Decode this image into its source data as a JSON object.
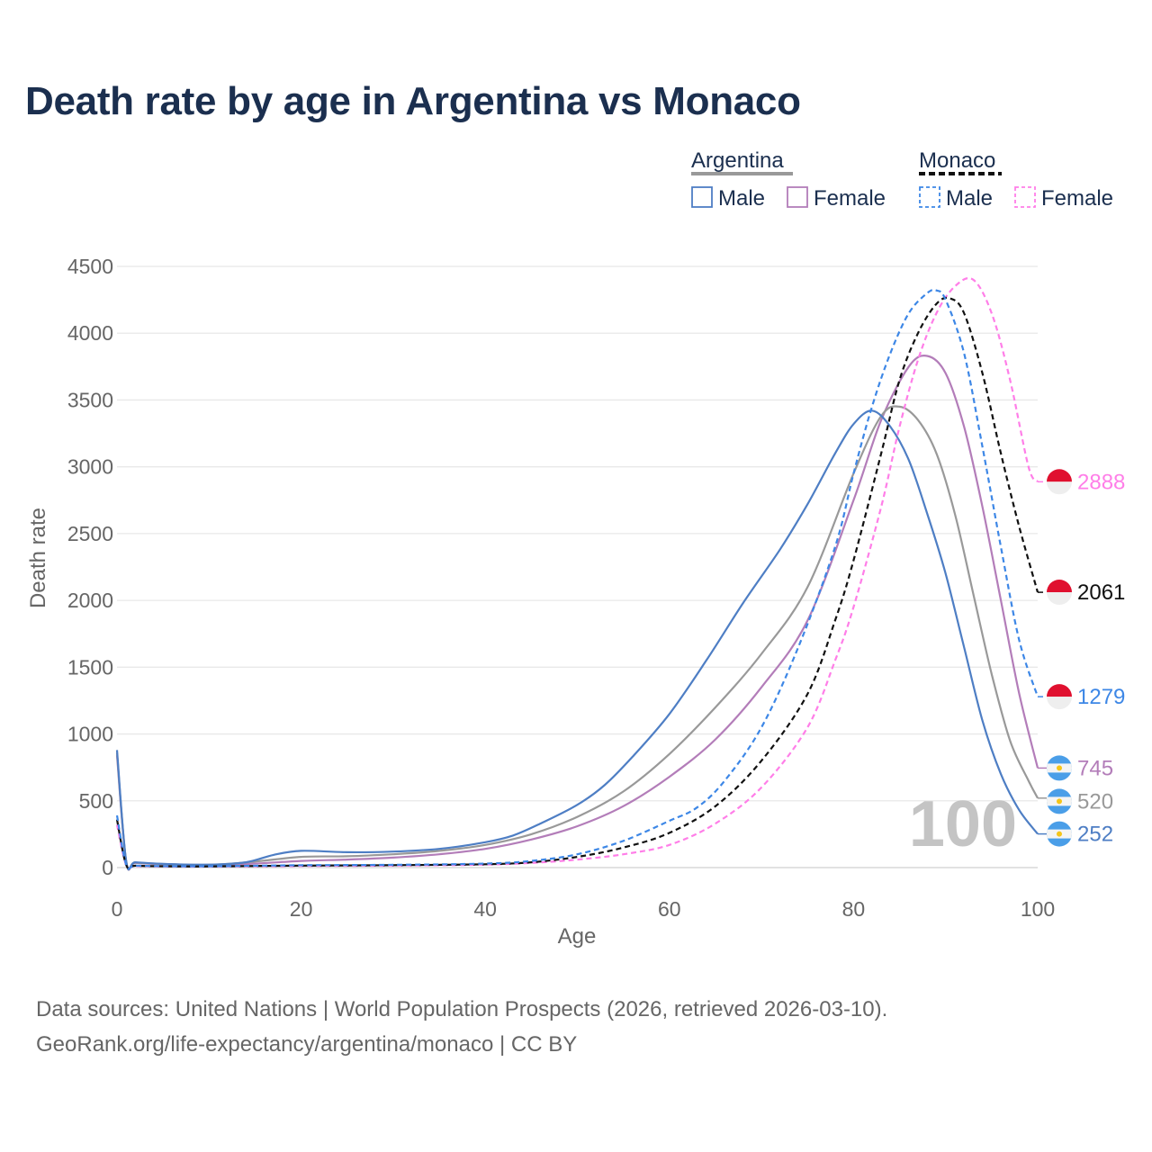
{
  "title": "Death rate by age in Argentina vs Monaco",
  "legend": {
    "groups": [
      {
        "name": "Argentina",
        "line_color": "#999999",
        "dash": false,
        "items": [
          {
            "label": "Male",
            "color": "#4e7ec4"
          },
          {
            "label": "Female",
            "color": "#b37db9"
          }
        ]
      },
      {
        "name": "Monaco",
        "line_color": "#111111",
        "dash": true,
        "items": [
          {
            "label": "Male",
            "color": "#3d87e6"
          },
          {
            "label": "Female",
            "color": "#ff7ee8"
          }
        ]
      }
    ]
  },
  "footer": {
    "line1": "Data sources: United Nations | World Population Prospects (2026, retrieved 2026-03-10).",
    "line2": "GeoRank.org/life-expectancy/argentina/monaco | CC BY"
  },
  "chart_data": {
    "type": "line",
    "xlabel": "Age",
    "ylabel": "Death rate",
    "xlim": [
      0,
      100
    ],
    "ylim": [
      0,
      4500
    ],
    "xticks": [
      0,
      20,
      40,
      60,
      80,
      100
    ],
    "yticks": [
      0,
      500,
      1000,
      1500,
      2000,
      2500,
      3000,
      3500,
      4000,
      4500
    ],
    "grid": true,
    "watermark": "100",
    "series": [
      {
        "name": "Argentina Female",
        "country": "argentina",
        "color": "#b37db9",
        "dash": false,
        "end_label": "745",
        "points": [
          [
            0,
            840
          ],
          [
            1,
            45
          ],
          [
            2,
            35
          ],
          [
            5,
            25
          ],
          [
            10,
            20
          ],
          [
            15,
            30
          ],
          [
            20,
            50
          ],
          [
            25,
            60
          ],
          [
            30,
            75
          ],
          [
            35,
            100
          ],
          [
            40,
            140
          ],
          [
            45,
            210
          ],
          [
            50,
            310
          ],
          [
            55,
            460
          ],
          [
            60,
            680
          ],
          [
            65,
            960
          ],
          [
            70,
            1350
          ],
          [
            75,
            1850
          ],
          [
            80,
            2750
          ],
          [
            83,
            3350
          ],
          [
            86,
            3750
          ],
          [
            88,
            3830
          ],
          [
            90,
            3700
          ],
          [
            92,
            3300
          ],
          [
            94,
            2700
          ],
          [
            96,
            2000
          ],
          [
            98,
            1300
          ],
          [
            100,
            745
          ]
        ]
      },
      {
        "name": "Argentina (average)",
        "country": "argentina",
        "color": "#999999",
        "dash": false,
        "end_label": "520",
        "points": [
          [
            0,
            860
          ],
          [
            1,
            48
          ],
          [
            2,
            38
          ],
          [
            5,
            27
          ],
          [
            10,
            20
          ],
          [
            15,
            45
          ],
          [
            20,
            80
          ],
          [
            25,
            85
          ],
          [
            30,
            100
          ],
          [
            35,
            125
          ],
          [
            40,
            170
          ],
          [
            45,
            250
          ],
          [
            50,
            380
          ],
          [
            55,
            570
          ],
          [
            60,
            850
          ],
          [
            65,
            1200
          ],
          [
            70,
            1600
          ],
          [
            75,
            2100
          ],
          [
            80,
            2950
          ],
          [
            83,
            3380
          ],
          [
            85,
            3450
          ],
          [
            87,
            3350
          ],
          [
            89,
            3100
          ],
          [
            91,
            2650
          ],
          [
            93,
            2050
          ],
          [
            95,
            1450
          ],
          [
            97,
            950
          ],
          [
            99,
            650
          ],
          [
            100,
            520
          ]
        ]
      },
      {
        "name": "Argentina Male",
        "country": "argentina",
        "color": "#4e7ec4",
        "dash": false,
        "end_label": "252",
        "points": [
          [
            0,
            880
          ],
          [
            1,
            50
          ],
          [
            2,
            40
          ],
          [
            5,
            28
          ],
          [
            10,
            22
          ],
          [
            14,
            40
          ],
          [
            17,
            95
          ],
          [
            20,
            125
          ],
          [
            25,
            115
          ],
          [
            30,
            120
          ],
          [
            35,
            140
          ],
          [
            40,
            190
          ],
          [
            43,
            240
          ],
          [
            46,
            330
          ],
          [
            50,
            470
          ],
          [
            53,
            620
          ],
          [
            56,
            830
          ],
          [
            60,
            1150
          ],
          [
            64,
            1550
          ],
          [
            68,
            1980
          ],
          [
            72,
            2380
          ],
          [
            75,
            2720
          ],
          [
            78,
            3100
          ],
          [
            80,
            3320
          ],
          [
            82,
            3420
          ],
          [
            84,
            3300
          ],
          [
            86,
            3050
          ],
          [
            88,
            2650
          ],
          [
            90,
            2200
          ],
          [
            92,
            1650
          ],
          [
            94,
            1100
          ],
          [
            96,
            700
          ],
          [
            98,
            430
          ],
          [
            100,
            252
          ]
        ]
      },
      {
        "name": "Monaco Female",
        "country": "monaco",
        "color": "#ff7ee8",
        "dash": true,
        "end_label": "2888",
        "points": [
          [
            0,
            320
          ],
          [
            1,
            18
          ],
          [
            2,
            12
          ],
          [
            5,
            9
          ],
          [
            10,
            8
          ],
          [
            20,
            12
          ],
          [
            30,
            15
          ],
          [
            40,
            22
          ],
          [
            45,
            35
          ],
          [
            50,
            60
          ],
          [
            55,
            100
          ],
          [
            60,
            170
          ],
          [
            65,
            330
          ],
          [
            70,
            600
          ],
          [
            75,
            1050
          ],
          [
            78,
            1550
          ],
          [
            80,
            1950
          ],
          [
            83,
            2700
          ],
          [
            85,
            3300
          ],
          [
            87,
            3800
          ],
          [
            89,
            4150
          ],
          [
            91,
            4350
          ],
          [
            93,
            4400
          ],
          [
            95,
            4150
          ],
          [
            97,
            3650
          ],
          [
            99,
            3000
          ],
          [
            100,
            2888
          ]
        ]
      },
      {
        "name": "Monaco (average)",
        "country": "monaco",
        "color": "#111111",
        "dash": true,
        "end_label": "2061",
        "points": [
          [
            0,
            360
          ],
          [
            1,
            20
          ],
          [
            2,
            14
          ],
          [
            5,
            10
          ],
          [
            10,
            9
          ],
          [
            20,
            15
          ],
          [
            30,
            18
          ],
          [
            40,
            25
          ],
          [
            45,
            40
          ],
          [
            50,
            80
          ],
          [
            55,
            150
          ],
          [
            60,
            260
          ],
          [
            65,
            460
          ],
          [
            70,
            800
          ],
          [
            75,
            1300
          ],
          [
            78,
            1850
          ],
          [
            80,
            2300
          ],
          [
            83,
            3100
          ],
          [
            85,
            3650
          ],
          [
            87,
            4000
          ],
          [
            89,
            4220
          ],
          [
            90.5,
            4260
          ],
          [
            92,
            4150
          ],
          [
            94,
            3700
          ],
          [
            96,
            3100
          ],
          [
            98,
            2550
          ],
          [
            100,
            2061
          ]
        ]
      },
      {
        "name": "Monaco Male",
        "country": "monaco",
        "color": "#3d87e6",
        "dash": true,
        "end_label": "1279",
        "points": [
          [
            0,
            390
          ],
          [
            1,
            22
          ],
          [
            2,
            15
          ],
          [
            5,
            11
          ],
          [
            10,
            10
          ],
          [
            20,
            18
          ],
          [
            30,
            21
          ],
          [
            40,
            30
          ],
          [
            45,
            50
          ],
          [
            50,
            100
          ],
          [
            55,
            200
          ],
          [
            60,
            350
          ],
          [
            63,
            450
          ],
          [
            66,
            650
          ],
          [
            70,
            1050
          ],
          [
            74,
            1650
          ],
          [
            78,
            2400
          ],
          [
            80,
            2950
          ],
          [
            82,
            3450
          ],
          [
            84,
            3850
          ],
          [
            86,
            4150
          ],
          [
            88,
            4300
          ],
          [
            89,
            4320
          ],
          [
            90,
            4250
          ],
          [
            92,
            3850
          ],
          [
            94,
            3150
          ],
          [
            96,
            2400
          ],
          [
            98,
            1700
          ],
          [
            100,
            1279
          ]
        ]
      }
    ]
  }
}
